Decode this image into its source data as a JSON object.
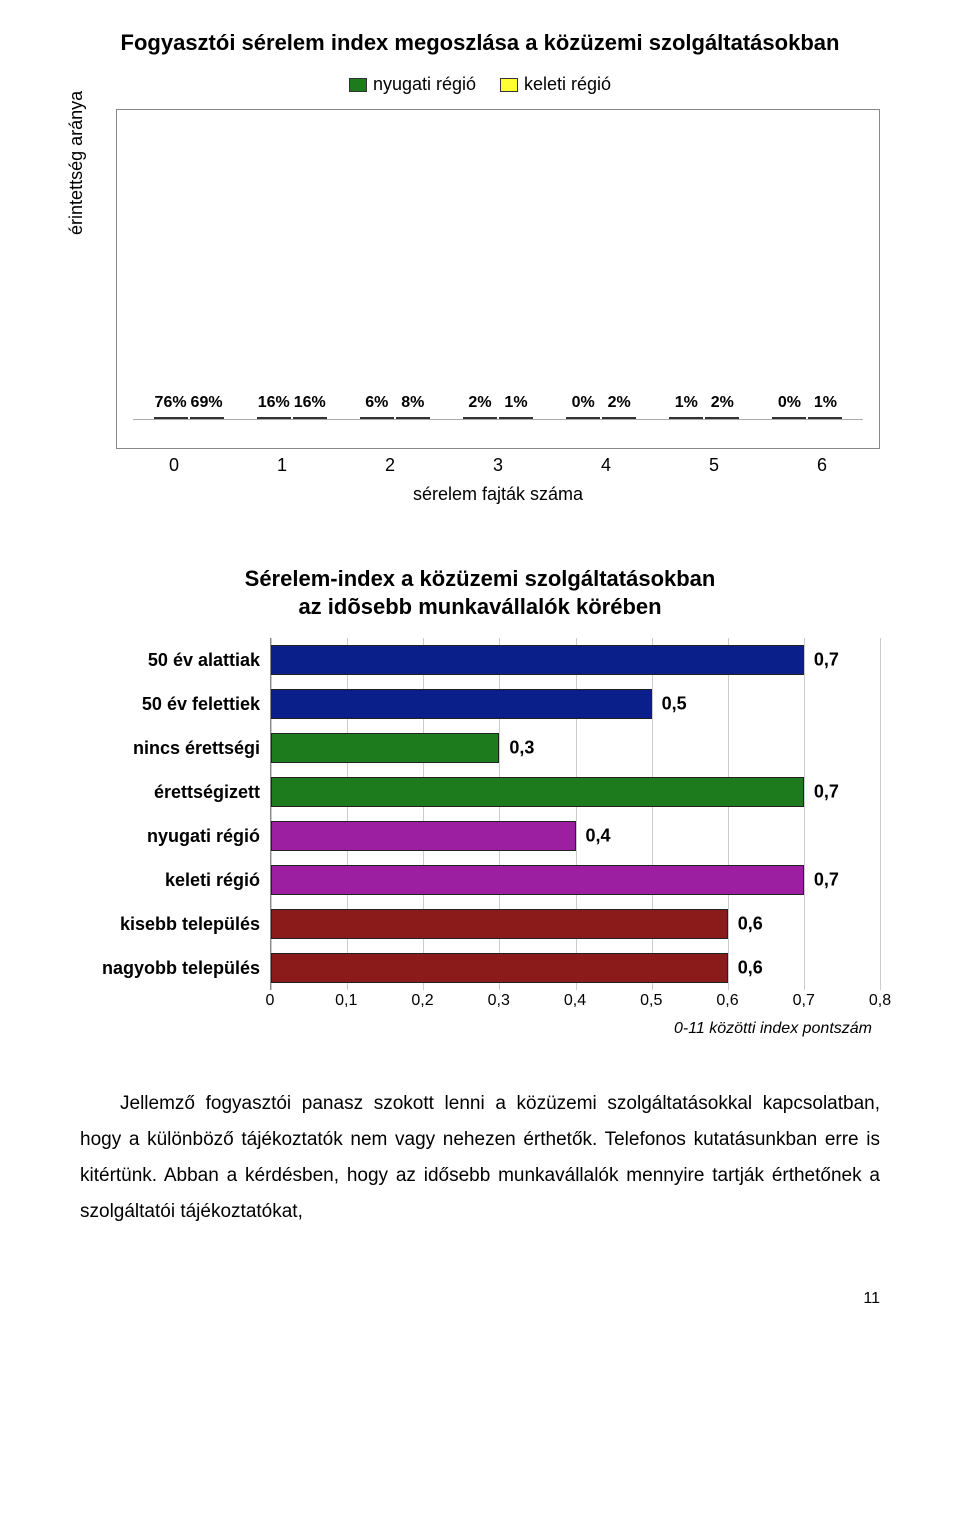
{
  "chart1": {
    "type": "grouped-bar-vertical",
    "title": "Fogyasztói sérelem index megoszlása a közüzemi szolgáltatásokban",
    "ylabel": "érintettség aránya",
    "xlabel": "sérelem fajták száma",
    "legend": [
      {
        "label": "nyugati régió",
        "color": "#1d7a1d"
      },
      {
        "label": "keleti régió",
        "color": "#ffff33"
      }
    ],
    "categories": [
      "0",
      "1",
      "2",
      "3",
      "4",
      "5",
      "6"
    ],
    "series_colors": [
      "#1d7a1d",
      "#ffff33"
    ],
    "values_pct": [
      [
        76,
        69
      ],
      [
        16,
        16
      ],
      [
        6,
        8
      ],
      [
        2,
        1
      ],
      [
        0,
        2
      ],
      [
        1,
        2
      ],
      [
        0,
        1
      ]
    ],
    "value_labels": [
      [
        "76%",
        "69%"
      ],
      [
        "16%",
        "16%"
      ],
      [
        "6%",
        "8%"
      ],
      [
        "2%",
        "1%"
      ],
      [
        "0%",
        "2%"
      ],
      [
        "1%",
        "2%"
      ],
      [
        "0%",
        "1%"
      ]
    ],
    "ymax": 80,
    "border_color": "#888888",
    "bar_border_color": "#333333",
    "background_color": "#ffffff",
    "label_fontsize": 16,
    "label_fontweight": "bold",
    "axis_fontsize": 18,
    "title_fontsize": 22
  },
  "chart2": {
    "type": "bar-horizontal",
    "title_line1": "Sérelem-index a közüzemi szolgáltatásokban",
    "title_line2": "az idõsebb munkavállalók körében",
    "xlabel": "0-11 közötti index pontszám",
    "xlim": [
      0,
      0.8
    ],
    "xtick_step": 0.1,
    "xtick_labels": [
      "0",
      "0,1",
      "0,2",
      "0,3",
      "0,4",
      "0,5",
      "0,6",
      "0,7",
      "0,8"
    ],
    "grid_color": "#cccccc",
    "bar_border_color": "#222222",
    "background_color": "#ffffff",
    "cat_fontsize": 18,
    "val_fontsize": 18,
    "title_fontsize": 22,
    "bars": [
      {
        "label": "50 év alattiak",
        "value": 0.7,
        "value_label": "0,7",
        "color": "#0b1f8a"
      },
      {
        "label": "50 év felettiek",
        "value": 0.5,
        "value_label": "0,5",
        "color": "#0b1f8a"
      },
      {
        "label": "nincs érettségi",
        "value": 0.3,
        "value_label": "0,3",
        "color": "#1d7a1d"
      },
      {
        "label": "érettségizett",
        "value": 0.7,
        "value_label": "0,7",
        "color": "#1d7a1d"
      },
      {
        "label": "nyugati régió",
        "value": 0.4,
        "value_label": "0,4",
        "color": "#9b1fa0"
      },
      {
        "label": "keleti régió",
        "value": 0.7,
        "value_label": "0,7",
        "color": "#9b1fa0"
      },
      {
        "label": "kisebb település",
        "value": 0.6,
        "value_label": "0,6",
        "color": "#8b1a1a"
      },
      {
        "label": "nagyobb település",
        "value": 0.6,
        "value_label": "0,6",
        "color": "#8b1a1a"
      }
    ]
  },
  "paragraph": "Jellemző fogyasztói panasz szokott lenni a közüzemi szolgáltatásokkal kapcsolatban, hogy a különböző tájékoztatók nem vagy nehezen érthetők. Telefonos kutatásunkban erre is kitértünk. Abban a kérdésben, hogy az idősebb munkavállalók mennyire tartják érthetőnek a szolgáltatói tájékoztatókat,",
  "page_number": "11"
}
